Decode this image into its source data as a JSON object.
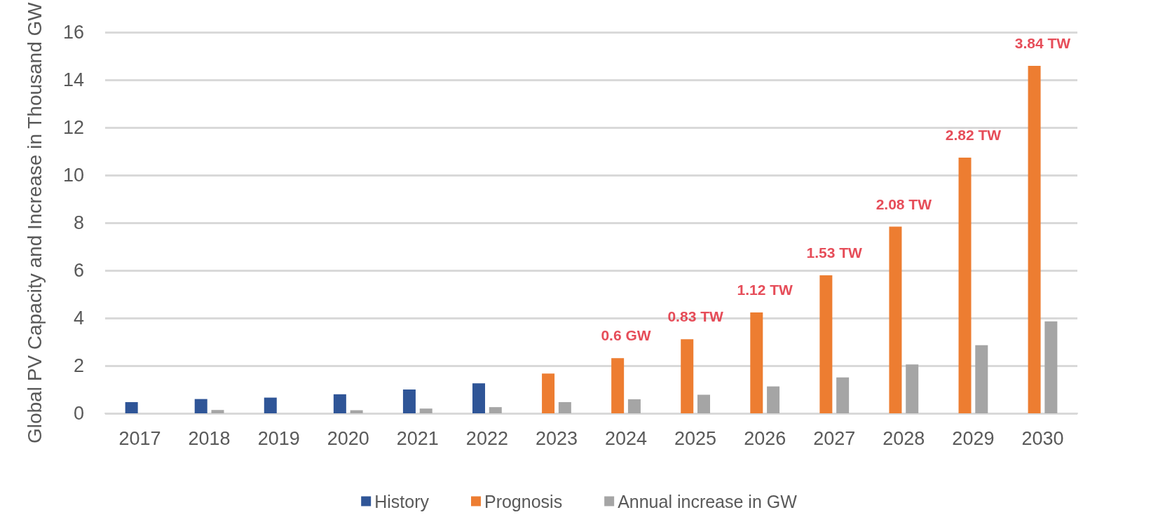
{
  "chart_data": {
    "type": "bar",
    "ylabel": "Global PV Capacity and Increase in Thousand GW",
    "categories": [
      "2017",
      "2018",
      "2019",
      "2020",
      "2021",
      "2022",
      "2023",
      "2024",
      "2025",
      "2026",
      "2027",
      "2028",
      "2029",
      "2030"
    ],
    "series": [
      {
        "name": "History",
        "color": "#2f5597",
        "values": [
          0.47,
          0.6,
          0.66,
          0.8,
          1.0,
          1.26,
          null,
          null,
          null,
          null,
          null,
          null,
          null,
          null
        ]
      },
      {
        "name": "Prognosis",
        "color": "#ed7d31",
        "values": [
          null,
          null,
          null,
          null,
          null,
          null,
          1.67,
          2.32,
          3.11,
          4.24,
          5.8,
          7.84,
          10.74,
          14.6
        ]
      },
      {
        "name": "Annual increase in GW",
        "color": "#a5a5a5",
        "values": [
          null,
          0.14,
          null,
          0.13,
          0.2,
          0.26,
          0.47,
          0.59,
          0.78,
          1.13,
          1.51,
          2.05,
          2.86,
          3.86
        ]
      }
    ],
    "ylim": [
      0,
      16
    ],
    "yticks": [
      0,
      2,
      4,
      6,
      8,
      10,
      12,
      14,
      16
    ],
    "grid": "y",
    "legend": "bottom",
    "annotations": [
      {
        "text": "0.6 GW",
        "x": "2024",
        "y": 2.32
      },
      {
        "text": "0.83 TW",
        "x": "2025",
        "y": 3.11
      },
      {
        "text": "1.12 TW",
        "x": "2026",
        "y": 4.24
      },
      {
        "text": "1.53 TW",
        "x": "2027",
        "y": 5.8
      },
      {
        "text": "2.08 TW",
        "x": "2028",
        "y": 7.84
      },
      {
        "text": "2.82 TW",
        "x": "2029",
        "y": 10.74
      },
      {
        "text": "3.84 TW",
        "x": "2030",
        "y": 14.6
      }
    ]
  }
}
